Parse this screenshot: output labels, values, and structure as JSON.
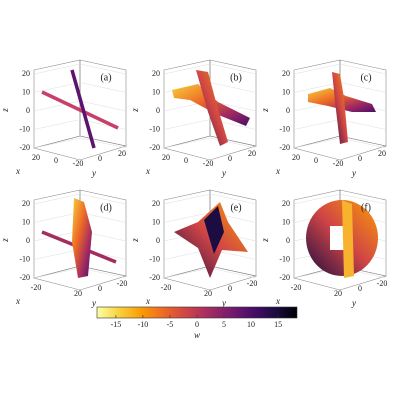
{
  "panels": [
    {
      "label": "(a)",
      "z_label": "z",
      "z_ticks": [
        20,
        10,
        0,
        -10,
        -20
      ],
      "x_label": "x",
      "x_ticks": [
        20,
        0
      ],
      "y_label": "y",
      "y_ticks": [
        -20,
        0,
        20
      ]
    },
    {
      "label": "(b)",
      "z_label": "z",
      "z_ticks": [
        20,
        10,
        0,
        -10,
        -20
      ],
      "x_label": "x",
      "x_ticks": [
        20,
        0
      ],
      "y_label": "y",
      "y_ticks": [
        -20,
        0,
        20
      ]
    },
    {
      "label": "(c)",
      "z_label": "z",
      "z_ticks": [
        20,
        10,
        0,
        -10,
        -20
      ],
      "x_label": "x",
      "x_ticks": [
        20,
        0
      ],
      "y_label": "y",
      "y_ticks": [
        -20,
        0,
        20
      ]
    },
    {
      "label": "(d)",
      "z_label": "z",
      "z_ticks": [
        20,
        10,
        0,
        -10,
        -20
      ],
      "x_label": "x",
      "x_ticks": [
        -20
      ],
      "y_label": "y",
      "y_ticks": [
        20,
        0,
        -20
      ]
    },
    {
      "label": "(e)",
      "z_label": "z",
      "z_ticks": [
        20,
        10,
        0,
        -10,
        -20
      ],
      "x_label": "x",
      "x_ticks": [
        -20
      ],
      "y_label": "y",
      "y_ticks": [
        20,
        0,
        -20
      ]
    },
    {
      "label": "(f)",
      "z_label": "z",
      "z_ticks": [
        20,
        10,
        0,
        -10,
        -20
      ],
      "x_label": "x",
      "x_ticks": [
        -20
      ],
      "y_label": "y",
      "y_ticks": [
        20,
        0,
        -20
      ]
    }
  ],
  "colorbar": {
    "label": "w",
    "lim": [
      -18.5,
      18.5
    ],
    "ticks": [
      -15,
      -10,
      -5,
      0,
      5,
      10,
      15
    ],
    "colors": [
      "#fcffa4",
      "#f7d13d",
      "#fb9b06",
      "#ed6925",
      "#cf4446",
      "#a52c60",
      "#781c6d",
      "#4a0c6b",
      "#1b0c41",
      "#000004"
    ]
  }
}
